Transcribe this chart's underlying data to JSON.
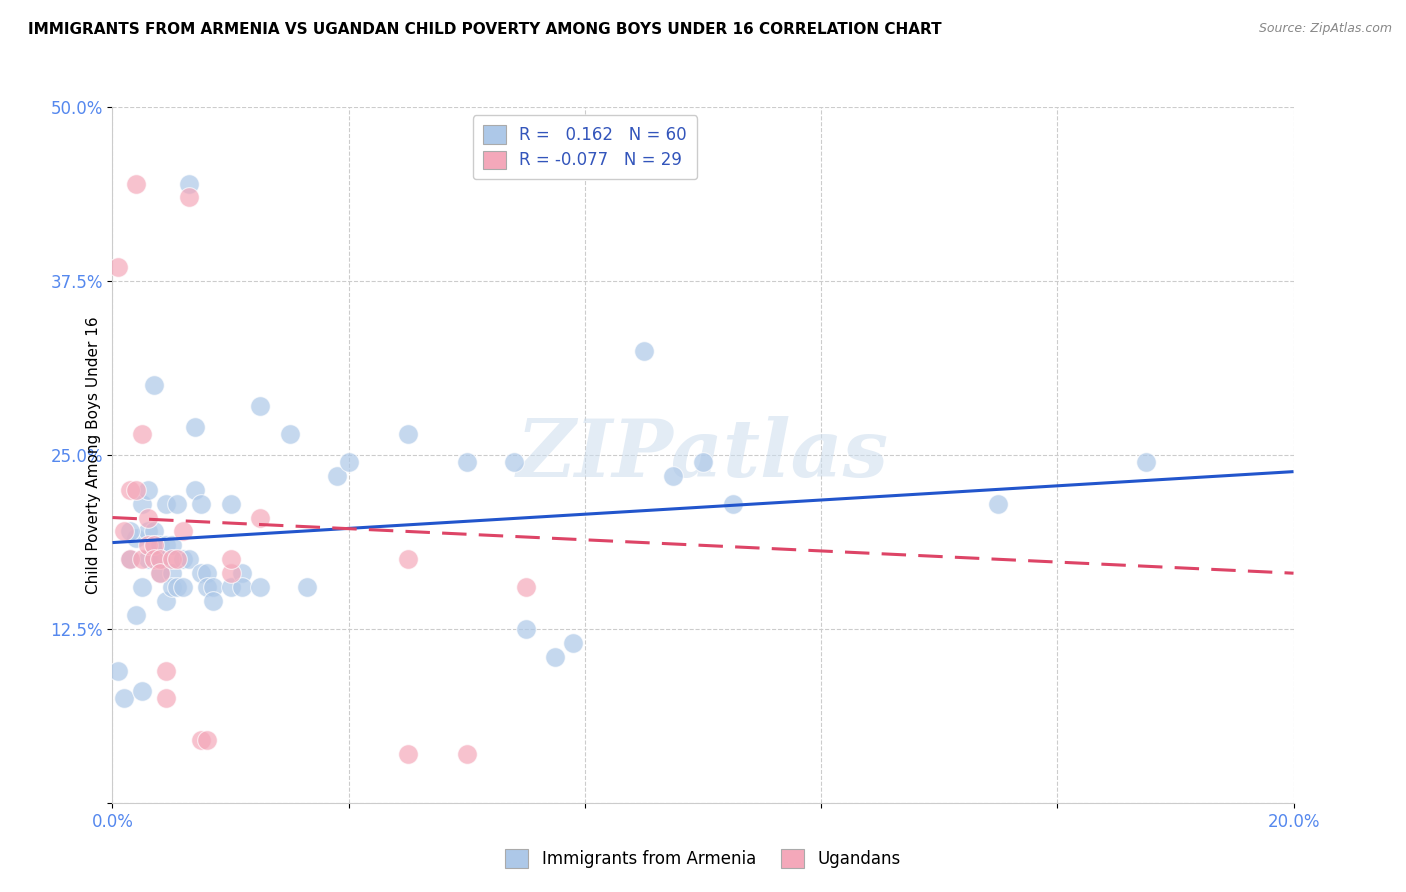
{
  "title": "IMMIGRANTS FROM ARMENIA VS UGANDAN CHILD POVERTY AMONG BOYS UNDER 16 CORRELATION CHART",
  "source": "Source: ZipAtlas.com",
  "ylabel": "Child Poverty Among Boys Under 16",
  "xlim": [
    0.0,
    0.2
  ],
  "ylim": [
    0.0,
    0.5
  ],
  "xticks": [
    0.0,
    0.04,
    0.08,
    0.12,
    0.16,
    0.2
  ],
  "xticklabels": [
    "0.0%",
    "",
    "",
    "",
    "",
    "20.0%"
  ],
  "yticks": [
    0.0,
    0.125,
    0.25,
    0.375,
    0.5
  ],
  "yticklabels": [
    "",
    "12.5%",
    "25.0%",
    "37.5%",
    "50.0%"
  ],
  "r_blue": 0.162,
  "n_blue": 60,
  "r_pink": -0.077,
  "n_pink": 29,
  "blue_color": "#adc8e8",
  "pink_color": "#f4a8ba",
  "blue_line_color": "#2255cc",
  "pink_line_color": "#dd4466",
  "legend_label_blue": "Immigrants from Armenia",
  "legend_label_pink": "Ugandans",
  "watermark": "ZIPatlas",
  "blue_scatter": [
    [
      0.001,
      0.095
    ],
    [
      0.002,
      0.075
    ],
    [
      0.003,
      0.175
    ],
    [
      0.004,
      0.135
    ],
    [
      0.004,
      0.19
    ],
    [
      0.005,
      0.215
    ],
    [
      0.005,
      0.155
    ],
    [
      0.005,
      0.08
    ],
    [
      0.006,
      0.195
    ],
    [
      0.006,
      0.175
    ],
    [
      0.006,
      0.225
    ],
    [
      0.007,
      0.3
    ],
    [
      0.007,
      0.195
    ],
    [
      0.007,
      0.185
    ],
    [
      0.008,
      0.185
    ],
    [
      0.008,
      0.165
    ],
    [
      0.008,
      0.175
    ],
    [
      0.009,
      0.215
    ],
    [
      0.009,
      0.185
    ],
    [
      0.009,
      0.145
    ],
    [
      0.01,
      0.185
    ],
    [
      0.01,
      0.165
    ],
    [
      0.01,
      0.155
    ],
    [
      0.011,
      0.155
    ],
    [
      0.011,
      0.215
    ],
    [
      0.012,
      0.175
    ],
    [
      0.012,
      0.155
    ],
    [
      0.013,
      0.445
    ],
    [
      0.013,
      0.175
    ],
    [
      0.014,
      0.27
    ],
    [
      0.014,
      0.225
    ],
    [
      0.015,
      0.215
    ],
    [
      0.015,
      0.165
    ],
    [
      0.016,
      0.165
    ],
    [
      0.016,
      0.155
    ],
    [
      0.017,
      0.155
    ],
    [
      0.017,
      0.145
    ],
    [
      0.02,
      0.215
    ],
    [
      0.02,
      0.155
    ],
    [
      0.022,
      0.165
    ],
    [
      0.022,
      0.155
    ],
    [
      0.025,
      0.285
    ],
    [
      0.025,
      0.155
    ],
    [
      0.03,
      0.265
    ],
    [
      0.033,
      0.155
    ],
    [
      0.038,
      0.235
    ],
    [
      0.04,
      0.245
    ],
    [
      0.05,
      0.265
    ],
    [
      0.06,
      0.245
    ],
    [
      0.068,
      0.245
    ],
    [
      0.07,
      0.125
    ],
    [
      0.075,
      0.105
    ],
    [
      0.078,
      0.115
    ],
    [
      0.09,
      0.325
    ],
    [
      0.095,
      0.235
    ],
    [
      0.1,
      0.245
    ],
    [
      0.105,
      0.215
    ],
    [
      0.15,
      0.215
    ],
    [
      0.175,
      0.245
    ],
    [
      0.003,
      0.195
    ]
  ],
  "pink_scatter": [
    [
      0.001,
      0.385
    ],
    [
      0.002,
      0.195
    ],
    [
      0.003,
      0.225
    ],
    [
      0.003,
      0.175
    ],
    [
      0.004,
      0.445
    ],
    [
      0.004,
      0.225
    ],
    [
      0.005,
      0.265
    ],
    [
      0.005,
      0.175
    ],
    [
      0.006,
      0.205
    ],
    [
      0.006,
      0.185
    ],
    [
      0.007,
      0.185
    ],
    [
      0.007,
      0.175
    ],
    [
      0.008,
      0.175
    ],
    [
      0.008,
      0.165
    ],
    [
      0.009,
      0.095
    ],
    [
      0.009,
      0.075
    ],
    [
      0.01,
      0.175
    ],
    [
      0.011,
      0.175
    ],
    [
      0.012,
      0.195
    ],
    [
      0.013,
      0.435
    ],
    [
      0.015,
      0.045
    ],
    [
      0.016,
      0.045
    ],
    [
      0.02,
      0.165
    ],
    [
      0.02,
      0.175
    ],
    [
      0.025,
      0.205
    ],
    [
      0.05,
      0.175
    ],
    [
      0.06,
      0.035
    ],
    [
      0.07,
      0.155
    ],
    [
      0.05,
      0.035
    ]
  ],
  "blue_line_x": [
    0.0,
    0.2
  ],
  "blue_line_y": [
    0.187,
    0.238
  ],
  "pink_line_x": [
    0.0,
    0.2
  ],
  "pink_line_y": [
    0.205,
    0.165
  ]
}
